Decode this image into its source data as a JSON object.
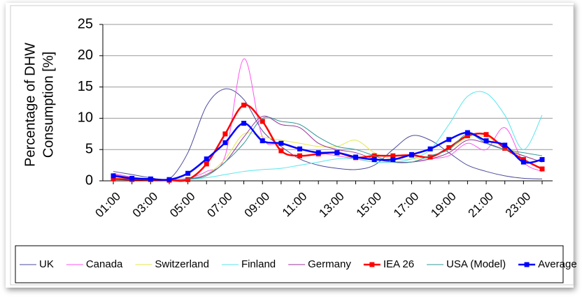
{
  "chart_data": {
    "type": "line",
    "y_label": [
      "Percentage of DHW",
      "Consumption [%]"
    ],
    "categories": [
      "01:00",
      null,
      "03:00",
      null,
      "05:00",
      null,
      "07:00",
      null,
      "09:00",
      null,
      "11:00",
      null,
      "13:00",
      null,
      "15:00",
      null,
      "17:00",
      null,
      "19:00",
      null,
      "21:00",
      null,
      "23:00",
      null
    ],
    "ylim": [
      0,
      25
    ],
    "yticks": [
      0,
      5,
      10,
      15,
      20,
      25
    ],
    "grid": true,
    "legend": "bottom",
    "smooth": true,
    "series": [
      {
        "name": "UK",
        "color": "#4b4b9c",
        "values": [
          1.5,
          1.0,
          0.5,
          0.3,
          4.5,
          12,
          14.7,
          13,
          8,
          5.5,
          3.5,
          2.5,
          2,
          1.8,
          2.5,
          5,
          7.2,
          6.5,
          4.5,
          2.5,
          1.5,
          0.8,
          0.4,
          0.3
        ]
      },
      {
        "name": "Canada",
        "color": "#ff55ee",
        "values": [
          1.2,
          0.6,
          0.3,
          0.2,
          0.4,
          1.5,
          4,
          19.5,
          7,
          6,
          5,
          4.5,
          4,
          3.5,
          3,
          3,
          3,
          3.5,
          4,
          6,
          5,
          8.5,
          3,
          1.5
        ]
      },
      {
        "name": "Switzerland",
        "color": "#e6e64a",
        "values": [
          0.5,
          0.3,
          0.2,
          0.2,
          0.3,
          1,
          3.5,
          7.5,
          7,
          6.5,
          6,
          5.5,
          5.5,
          6.5,
          4.5,
          3.5,
          3.5,
          4,
          5,
          7,
          7,
          5.5,
          4,
          3
        ]
      },
      {
        "name": "Finland",
        "color": "#55e6ee",
        "values": [
          0.3,
          0.2,
          0.2,
          0.2,
          0.2,
          0.5,
          1,
          1.5,
          1.8,
          2,
          2.5,
          3,
          3.5,
          3.5,
          3,
          3,
          3.5,
          5,
          9,
          13.5,
          14,
          10.5,
          5,
          10.5
        ]
      },
      {
        "name": "Germany",
        "color": "#993399",
        "values": [
          1,
          0.5,
          0.3,
          0.2,
          0.3,
          1,
          3,
          7,
          10.3,
          9,
          8.5,
          6,
          5,
          4.5,
          3.5,
          3,
          3,
          3.5,
          4.5,
          6.5,
          6,
          5,
          4,
          3
        ]
      },
      {
        "name": "IEA 26",
        "color": "#ff0000",
        "marker": "square",
        "values": [
          0.3,
          0.2,
          0.2,
          0.1,
          0.2,
          2.7,
          7.5,
          12.1,
          9.5,
          4.8,
          4.0,
          4.3,
          4.5,
          3.7,
          4.0,
          4.0,
          4.1,
          3.8,
          5.3,
          7.2,
          7.4,
          5.2,
          3.4,
          1.9
        ]
      },
      {
        "name": "USA (Model)",
        "color": "#339999",
        "values": [
          0.8,
          0.5,
          0.3,
          0.2,
          0.3,
          0.8,
          3,
          6,
          10,
          9.5,
          9,
          7,
          5.5,
          5,
          4,
          3,
          3,
          4,
          5,
          7.5,
          6,
          5,
          4.5,
          4
        ]
      },
      {
        "name": "Average",
        "color": "#0000ff",
        "marker": "square",
        "values": [
          0.8,
          0.4,
          0.3,
          0.2,
          1.2,
          3.5,
          6.1,
          9.2,
          6.4,
          6.0,
          5.1,
          4.5,
          4.5,
          3.8,
          3.4,
          3.4,
          4.2,
          5.1,
          6.6,
          7.7,
          6.4,
          5.7,
          3.0,
          3.4
        ]
      }
    ]
  }
}
